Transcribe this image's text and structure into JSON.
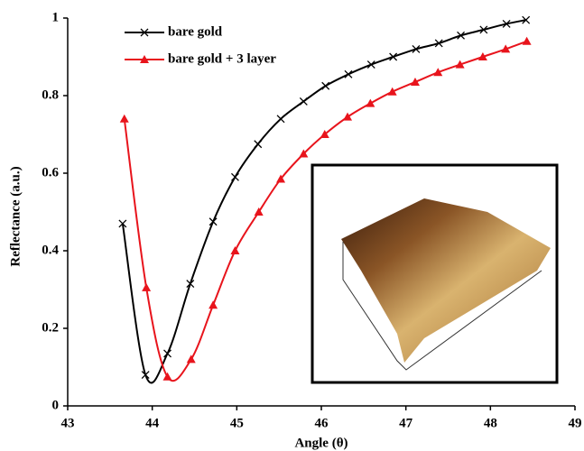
{
  "chart_data": {
    "type": "line",
    "x_label": "Angle (θ)",
    "y_label": "Reflectance (a.u.)",
    "xlim": [
      43,
      49
    ],
    "xticks": [
      43,
      44,
      45,
      46,
      47,
      48,
      49
    ],
    "ylim": [
      0,
      1
    ],
    "yticks": [
      0,
      0.2,
      0.4,
      0.6,
      0.8,
      1
    ],
    "grid": false,
    "legend": "top-left",
    "series": [
      {
        "name": "bare gold",
        "color": "#000000",
        "marker": "x",
        "x": [
          43.65,
          43.92,
          44.18,
          44.45,
          44.72,
          44.98,
          45.25,
          45.52,
          45.79,
          46.05,
          46.32,
          46.59,
          46.85,
          47.12,
          47.39,
          47.65,
          47.92,
          48.19,
          48.42
        ],
        "values": [
          0.47,
          0.08,
          0.135,
          0.315,
          0.475,
          0.59,
          0.675,
          0.74,
          0.785,
          0.825,
          0.855,
          0.88,
          0.9,
          0.92,
          0.935,
          0.955,
          0.97,
          0.985,
          0.995
        ]
      },
      {
        "name": "bare gold + 3 layer",
        "color": "#e8141c",
        "marker": "triangle",
        "x": [
          43.67,
          43.93,
          44.18,
          44.46,
          44.72,
          44.98,
          45.26,
          45.52,
          45.79,
          46.04,
          46.31,
          46.58,
          46.84,
          47.11,
          47.38,
          47.64,
          47.91,
          48.18,
          48.43
        ],
        "values": [
          0.74,
          0.305,
          0.075,
          0.12,
          0.26,
          0.4,
          0.5,
          0.585,
          0.65,
          0.7,
          0.745,
          0.78,
          0.81,
          0.835,
          0.86,
          0.88,
          0.9,
          0.92,
          0.94
        ]
      }
    ]
  }
}
